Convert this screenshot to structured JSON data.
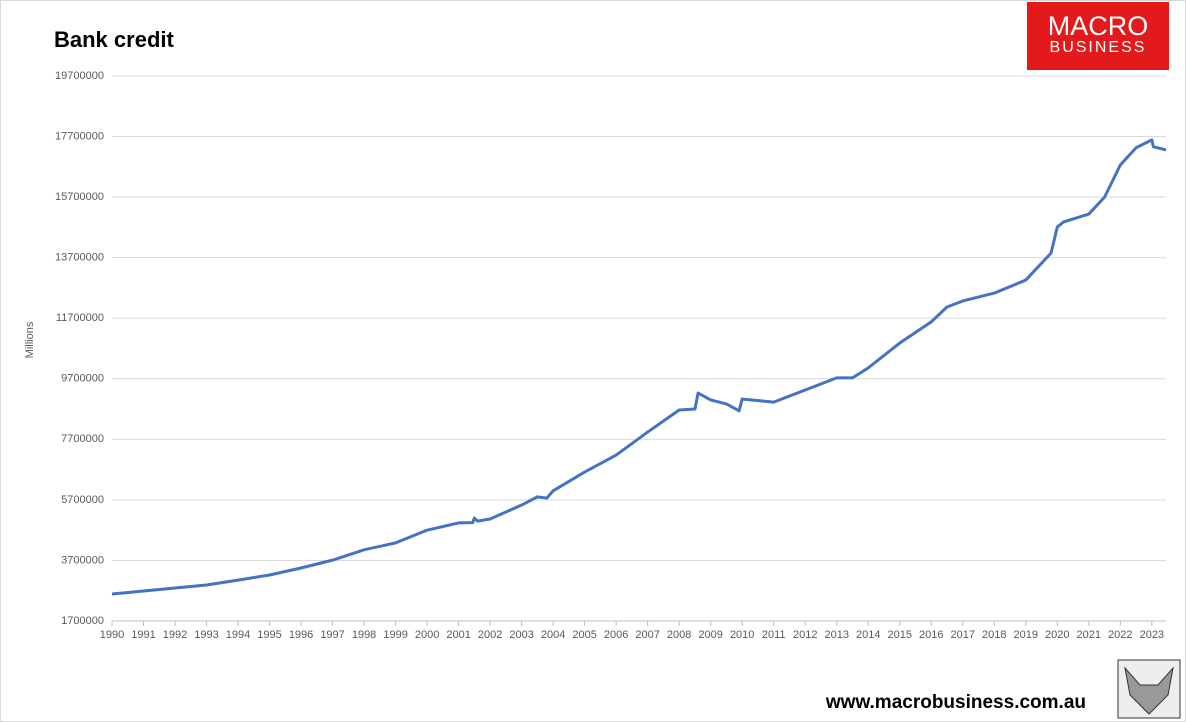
{
  "chart_data": {
    "type": "line",
    "title": "Bank credit",
    "y_label": "Millions",
    "logo": [
      "MACRO",
      "BUSINESS"
    ],
    "footer": "www.macrobusiness.com.au",
    "x": [
      1990,
      1991,
      1992,
      1993,
      1994,
      1995,
      1996,
      1997,
      1998,
      1999,
      2000,
      2001,
      2001.45,
      2001.5,
      2001.6,
      2002,
      2003,
      2003.5,
      2003.8,
      2004,
      2005,
      2006,
      2007,
      2008,
      2008.5,
      2008.6,
      2009,
      2009.5,
      2009.9,
      2010,
      2011,
      2012,
      2013,
      2013.5,
      2014,
      2015,
      2016,
      2016.5,
      2017,
      2018,
      2019,
      2019.8,
      2020,
      2020.2,
      2021,
      2021.5,
      2022,
      2022.5,
      2023,
      2023.05,
      2023.45
    ],
    "series": [
      {
        "name": "Bank credit",
        "color": "#4472c4",
        "values": [
          2590000,
          2690000,
          2790000,
          2890000,
          3050000,
          3220000,
          3450000,
          3710000,
          4050000,
          4280000,
          4700000,
          4940000,
          4950000,
          5100000,
          5000000,
          5070000,
          5530000,
          5800000,
          5760000,
          6000000,
          6620000,
          7180000,
          7940000,
          8670000,
          8700000,
          9230000,
          9000000,
          8870000,
          8640000,
          9030000,
          8930000,
          9330000,
          9730000,
          9730000,
          10060000,
          10880000,
          11580000,
          12070000,
          12270000,
          12530000,
          12960000,
          13850000,
          14710000,
          14880000,
          15140000,
          15700000,
          16760000,
          17330000,
          17590000,
          17360000,
          17260000
        ]
      }
    ],
    "xlim": [
      1990,
      2023.45
    ],
    "xticks": [
      1990,
      1991,
      1992,
      1993,
      1994,
      1995,
      1996,
      1997,
      1998,
      1999,
      2000,
      2001,
      2002,
      2003,
      2004,
      2005,
      2006,
      2007,
      2008,
      2009,
      2010,
      2011,
      2012,
      2013,
      2014,
      2015,
      2016,
      2017,
      2018,
      2019,
      2020,
      2021,
      2022,
      2023
    ],
    "ylim": [
      1700000,
      19700000
    ],
    "yticks": [
      1700000,
      3700000,
      5700000,
      7700000,
      9700000,
      11700000,
      13700000,
      15700000,
      17700000,
      19700000
    ],
    "grid": true
  }
}
